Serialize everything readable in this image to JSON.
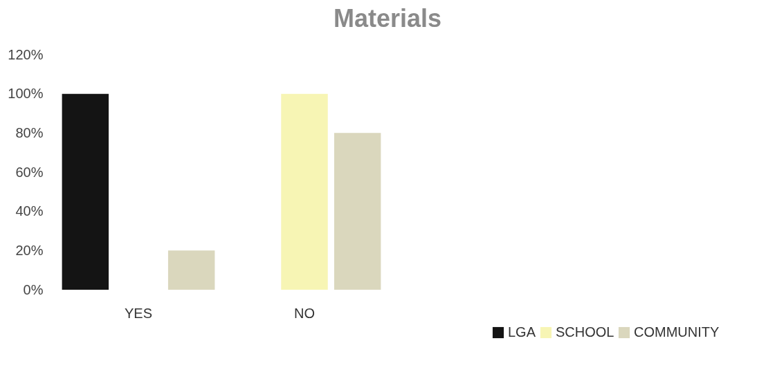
{
  "chart_data": {
    "type": "bar",
    "title": "Materials",
    "categories": [
      "YES",
      "NO",
      null,
      null
    ],
    "series": [
      {
        "name": "LGA",
        "color": "#141414",
        "values": [
          100,
          0,
          null,
          null
        ]
      },
      {
        "name": "SCHOOL",
        "color": "#f7f5b4",
        "values": [
          0,
          100,
          null,
          null
        ]
      },
      {
        "name": "COMMUNITY",
        "color": "#dad7bd",
        "values": [
          20,
          80,
          null,
          null
        ]
      }
    ],
    "ylim": [
      0,
      120
    ],
    "yticks": [
      {
        "value": 0,
        "label": "0%"
      },
      {
        "value": 20,
        "label": "20%"
      },
      {
        "value": 40,
        "label": "40%"
      },
      {
        "value": 60,
        "label": "60%"
      },
      {
        "value": 80,
        "label": "80%"
      },
      {
        "value": 100,
        "label": "100%"
      },
      {
        "value": 120,
        "label": "120%"
      }
    ],
    "grid": false,
    "legend": "bottom right"
  }
}
